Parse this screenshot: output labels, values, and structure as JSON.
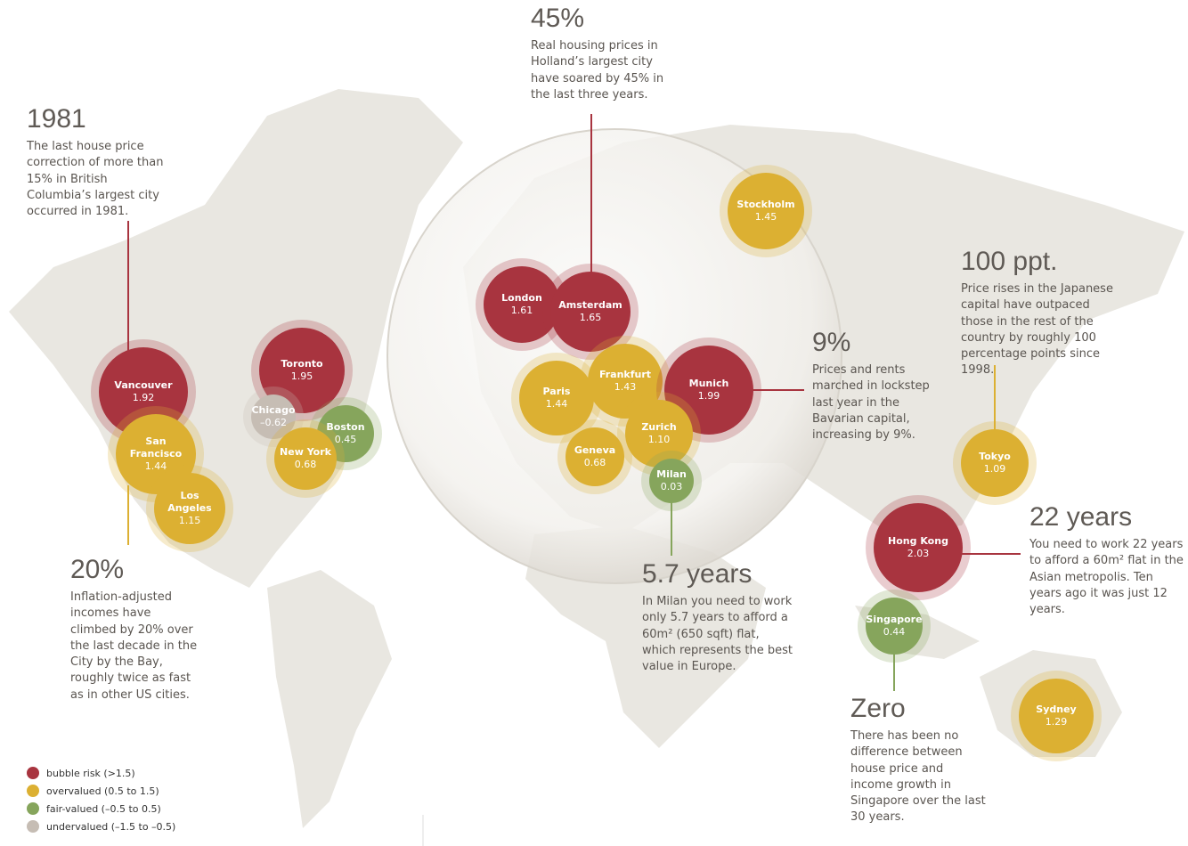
{
  "legend": [
    {
      "label": "bubble risk (>1.5)",
      "color": "#a8343f"
    },
    {
      "label": "overvalued (0.5 to 1.5)",
      "color": "#dcb032"
    },
    {
      "label": "fair-valued (–0.5 to 0.5)",
      "color": "#86a55c"
    },
    {
      "label": "undervalued (–1.5 to –0.5)",
      "color": "#c6bdb4"
    }
  ],
  "cities": [
    {
      "name": "Vancouver",
      "value": "1.92",
      "class": 0
    },
    {
      "name": "San Francisco",
      "value": "1.44",
      "class": 1
    },
    {
      "name": "Los Angeles",
      "value": "1.15",
      "class": 1
    },
    {
      "name": "Toronto",
      "value": "1.95",
      "class": 0
    },
    {
      "name": "Chicago",
      "value": "–0.62",
      "class": 3
    },
    {
      "name": "Boston",
      "value": "0.45",
      "class": 2
    },
    {
      "name": "New York",
      "value": "0.68",
      "class": 1
    },
    {
      "name": "London",
      "value": "1.61",
      "class": 0
    },
    {
      "name": "Amsterdam",
      "value": "1.65",
      "class": 0
    },
    {
      "name": "Stockholm",
      "value": "1.45",
      "class": 1
    },
    {
      "name": "Paris",
      "value": "1.44",
      "class": 1
    },
    {
      "name": "Frankfurt",
      "value": "1.43",
      "class": 1
    },
    {
      "name": "Munich",
      "value": "1.99",
      "class": 0
    },
    {
      "name": "Zurich",
      "value": "1.10",
      "class": 1
    },
    {
      "name": "Geneva",
      "value": "0.68",
      "class": 1
    },
    {
      "name": "Milan",
      "value": "0.03",
      "class": 2
    },
    {
      "name": "Tokyo",
      "value": "1.09",
      "class": 1
    },
    {
      "name": "Hong Kong",
      "value": "2.03",
      "class": 0
    },
    {
      "name": "Singapore",
      "value": "0.44",
      "class": 2
    },
    {
      "name": "Sydney",
      "value": "1.29",
      "class": 1
    }
  ],
  "annotations": [
    {
      "heading": "1981",
      "text": "The last house price correction of more than 15% in British Columbia’s largest city occurred in 1981."
    },
    {
      "heading": "20%",
      "text": "Inflation-adjusted incomes have climbed by 20% over the last decade in the City by the Bay, roughly twice as fast as in other US cities."
    },
    {
      "heading": "45%",
      "text": "Real housing prices in Holland’s largest city have soared by 45% in the last three years."
    },
    {
      "heading": "9%",
      "text": "Prices and rents marched in lockstep last year in the Bavarian capital, increasing by 9%."
    },
    {
      "heading": "5.7 years",
      "text": "In Milan you need to work only 5.7 years to afford a 60m² (650 sqft) flat, which represents the best value in Europe."
    },
    {
      "heading": "100 ppt.",
      "text": "Price rises in the Japanese capital have outpaced those in the rest of the country by roughly 100 percentage points since 1998."
    },
    {
      "heading": "22 years",
      "text": "You need to work 22 years to afford a 60m² flat in the Asian metropolis. Ten years ago it was just 12 years."
    },
    {
      "heading": "Zero",
      "text": "There has been no difference between house price and income growth in Singapore over the last 30 years."
    }
  ]
}
